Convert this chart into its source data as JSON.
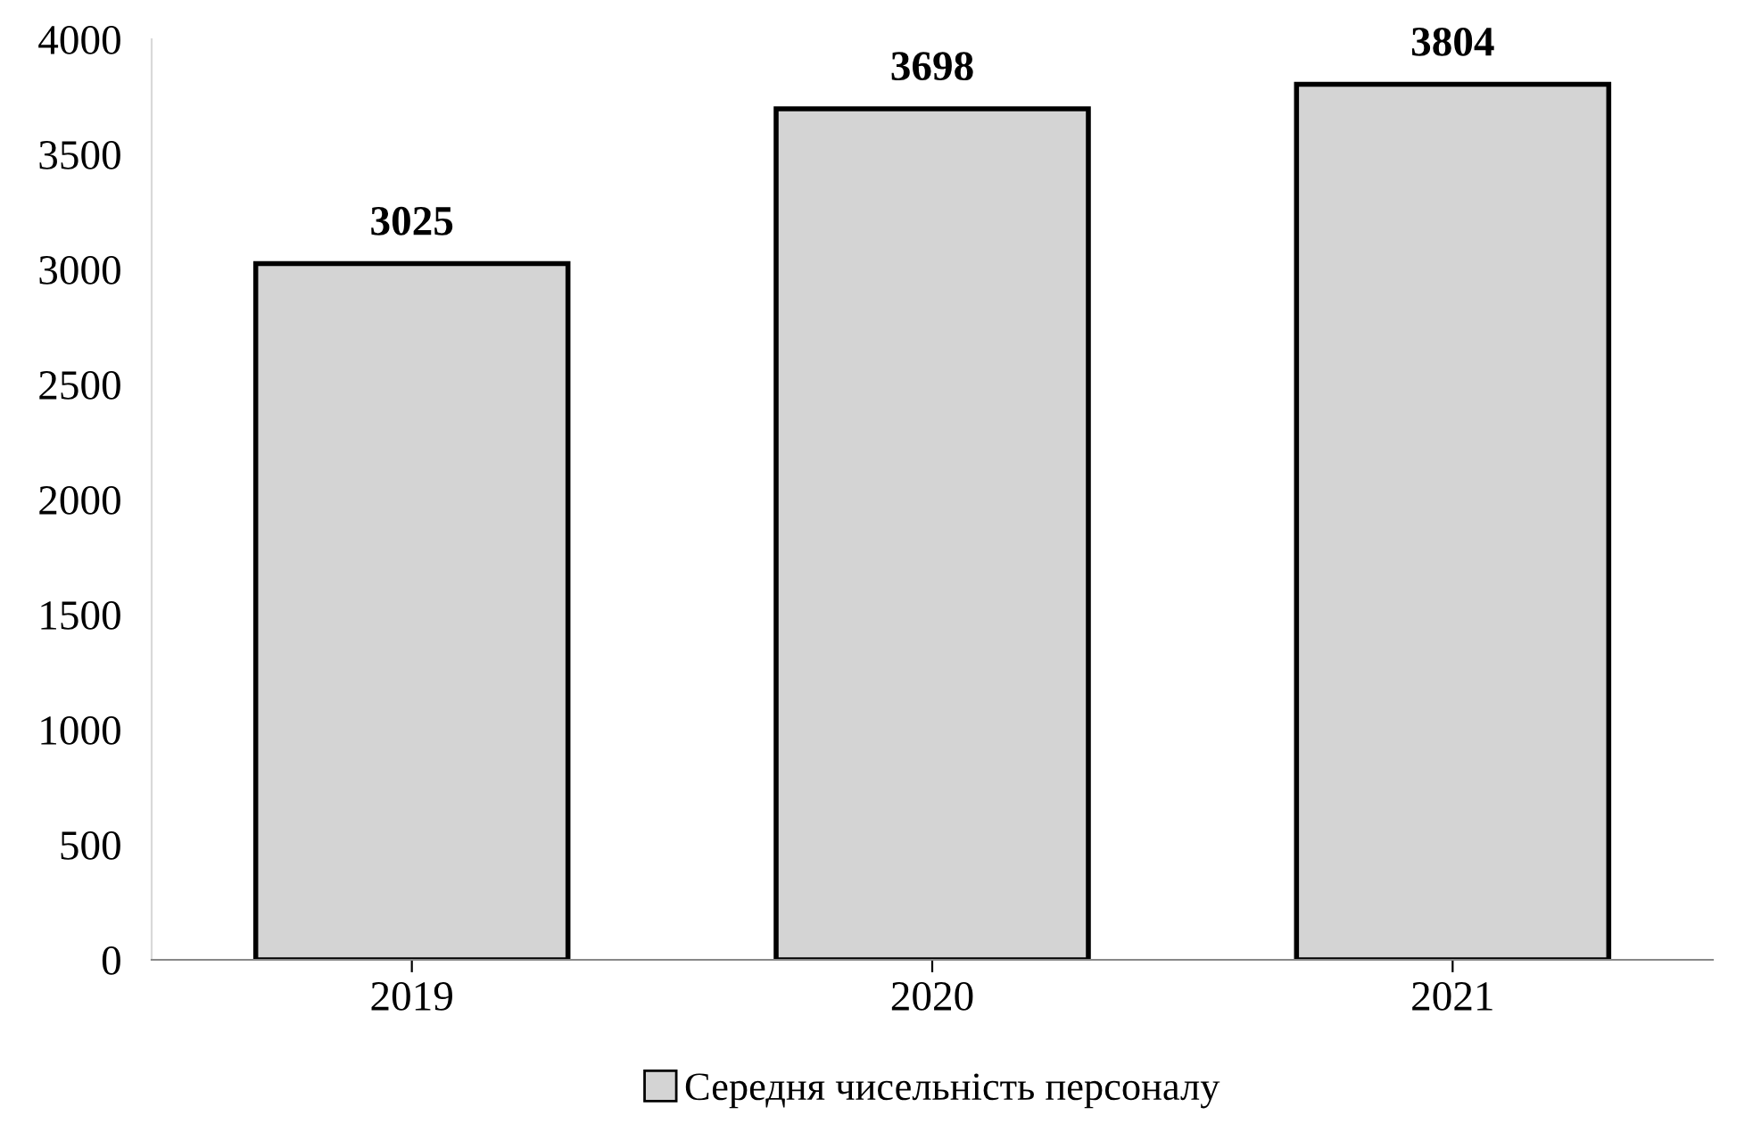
{
  "chart_data": {
    "type": "bar",
    "categories": [
      "2019",
      "2020",
      "2021"
    ],
    "series": [
      {
        "name": "Середня чисельність персоналу",
        "color": "#d4d4d4",
        "values": [
          3025,
          3698,
          3804
        ]
      }
    ],
    "ylim": [
      0,
      4000
    ],
    "yticks": [
      0,
      500,
      1000,
      1500,
      2000,
      2500,
      3000,
      3500,
      4000
    ],
    "grid": false,
    "data_labels": true,
    "legend": "bottom"
  }
}
